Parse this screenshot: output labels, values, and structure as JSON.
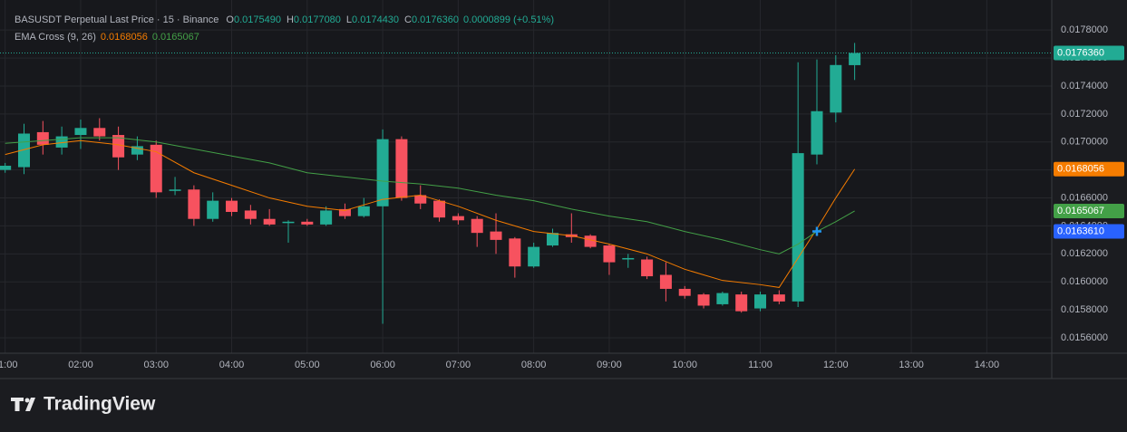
{
  "chart_data": {
    "type": "candlestick",
    "title": "BASUSDT Perpetual Last Price · 15 · Binance",
    "ohlc_legend": [
      {
        "key": "O",
        "text": "0.0175490"
      },
      {
        "key": "H",
        "text": "0.0177080"
      },
      {
        "key": "L",
        "text": "0.0174430"
      },
      {
        "key": "C",
        "text": "0.0176360"
      }
    ],
    "change": "0.0000899 (+0.51%)",
    "indicator": "EMA Cross (9, 26)",
    "x": [
      1,
      1.25,
      1.5,
      1.75,
      2,
      2.25,
      2.5,
      2.75,
      3,
      3.25,
      3.5,
      3.75,
      4,
      4.25,
      4.5,
      4.75,
      5,
      5.25,
      5.5,
      5.75,
      6,
      6.25,
      6.5,
      6.75,
      7,
      7.25,
      7.5,
      7.75,
      8,
      8.25,
      8.5,
      8.75,
      9,
      9.25,
      9.5,
      9.75,
      10,
      10.25,
      10.5,
      10.75,
      11,
      11.25,
      11.5,
      11.75,
      12,
      12.25
    ],
    "open": [
      0.0168,
      0.01682,
      0.01707,
      0.01696,
      0.01705,
      0.0171,
      0.01705,
      0.01691,
      0.01698,
      0.01665,
      0.01666,
      0.01645,
      0.01658,
      0.01651,
      0.01645,
      0.01642,
      0.01643,
      0.01641,
      0.01652,
      0.01647,
      0.01654,
      0.01702,
      0.01662,
      0.01658,
      0.01647,
      0.01645,
      0.01636,
      0.01631,
      0.01611,
      0.01626,
      0.01634,
      0.01633,
      0.01626,
      0.01616,
      0.01616,
      0.01605,
      0.01595,
      0.01591,
      0.01584,
      0.01591,
      0.01581,
      0.01591,
      0.01586,
      0.01691,
      0.01721,
      0.017549
    ],
    "high": [
      0.01685,
      0.01713,
      0.01715,
      0.01711,
      0.01716,
      0.01717,
      0.01711,
      0.01704,
      0.01701,
      0.01675,
      0.01669,
      0.01664,
      0.0166,
      0.01655,
      0.01652,
      0.01644,
      0.01645,
      0.01654,
      0.01656,
      0.0166,
      0.01709,
      0.01704,
      0.01669,
      0.01659,
      0.01649,
      0.01647,
      0.01649,
      0.01632,
      0.01628,
      0.01638,
      0.01649,
      0.01634,
      0.01627,
      0.0162,
      0.01618,
      0.01614,
      0.01597,
      0.01592,
      0.01593,
      0.01593,
      0.01593,
      0.01594,
      0.01757,
      0.01759,
      0.01762,
      0.017708
    ],
    "low": [
      0.01678,
      0.01677,
      0.01691,
      0.01691,
      0.01695,
      0.01701,
      0.0168,
      0.01687,
      0.0166,
      0.01662,
      0.0164,
      0.01643,
      0.01647,
      0.01641,
      0.0164,
      0.01628,
      0.0164,
      0.0164,
      0.01645,
      0.01646,
      0.0157,
      0.01658,
      0.01652,
      0.01643,
      0.01641,
      0.01625,
      0.0162,
      0.01603,
      0.0161,
      0.01625,
      0.01628,
      0.01624,
      0.01605,
      0.0161,
      0.01602,
      0.01586,
      0.01588,
      0.01581,
      0.01583,
      0.01578,
      0.01579,
      0.01584,
      0.01582,
      0.01684,
      0.01714,
      0.017443
    ],
    "close": [
      0.01683,
      0.01706,
      0.01698,
      0.01704,
      0.0171,
      0.01704,
      0.01689,
      0.01697,
      0.01664,
      0.01666,
      0.01645,
      0.01658,
      0.0165,
      0.01645,
      0.01641,
      0.01643,
      0.01641,
      0.01651,
      0.01647,
      0.01654,
      0.01702,
      0.0166,
      0.01656,
      0.01646,
      0.01644,
      0.01635,
      0.0163,
      0.01611,
      0.01625,
      0.01635,
      0.01632,
      0.01625,
      0.01614,
      0.01617,
      0.01604,
      0.01595,
      0.0159,
      0.01583,
      0.01592,
      0.01579,
      0.01591,
      0.01586,
      0.01692,
      0.01722,
      0.01755,
      0.017636
    ],
    "up_color": "#22ab94",
    "down_color": "#f7525f",
    "series": [
      {
        "color": "#f57c00",
        "x": [
          1,
          1.5,
          2,
          2.5,
          3,
          3.5,
          4,
          4.5,
          5,
          5.5,
          6,
          6.5,
          7,
          7.5,
          8,
          8.5,
          9,
          9.5,
          10,
          10.5,
          11,
          11.25,
          11.5,
          11.75,
          12,
          12.25
        ],
        "values": [
          0.01691,
          0.01698,
          0.01701,
          0.01698,
          0.01693,
          0.01678,
          0.01669,
          0.0166,
          0.01654,
          0.01651,
          0.01659,
          0.01662,
          0.01654,
          0.01644,
          0.01636,
          0.01633,
          0.01627,
          0.0162,
          0.01609,
          0.01601,
          0.01598,
          0.01596,
          0.01617,
          0.01638,
          0.0166,
          0.0168056
        ]
      },
      {
        "color": "#43a047",
        "x": [
          1,
          1.5,
          2,
          2.5,
          3,
          3.5,
          4,
          4.5,
          5,
          5.5,
          6,
          6.5,
          7,
          7.5,
          8,
          8.5,
          9,
          9.5,
          10,
          10.5,
          11,
          11.25,
          11.5,
          11.75,
          12,
          12.25
        ],
        "values": [
          0.01699,
          0.01701,
          0.01703,
          0.01703,
          0.017,
          0.01695,
          0.0169,
          0.01685,
          0.01678,
          0.01675,
          0.01672,
          0.0167,
          0.01667,
          0.01662,
          0.01658,
          0.01652,
          0.01647,
          0.01643,
          0.01636,
          0.0163,
          0.01623,
          0.0162,
          0.01627,
          0.01636,
          0.01643,
          0.0165067
        ]
      }
    ],
    "xlim": [
      1.052,
      14.86
    ],
    "xticks": [
      {
        "value": 1,
        "label": "01:00"
      },
      {
        "value": 2,
        "label": "02:00"
      },
      {
        "value": 3,
        "label": "03:00"
      },
      {
        "value": 4,
        "label": "04:00"
      },
      {
        "value": 5,
        "label": "05:00"
      },
      {
        "value": 6,
        "label": "06:00"
      },
      {
        "value": 7,
        "label": "07:00"
      },
      {
        "value": 8,
        "label": "08:00"
      },
      {
        "value": 9,
        "label": "09:00"
      },
      {
        "value": 10,
        "label": "10:00"
      },
      {
        "value": 11,
        "label": "11:00"
      },
      {
        "value": 12,
        "label": "12:00"
      },
      {
        "value": 13,
        "label": "13:00"
      },
      {
        "value": 14,
        "label": "14:00"
      }
    ],
    "ylim": [
      0.01549,
      0.01795
    ],
    "yticks": [
      {
        "value": 0.0156,
        "label": "0.0156000"
      },
      {
        "value": 0.0158,
        "label": "0.0158000"
      },
      {
        "value": 0.016,
        "label": "0.0160000"
      },
      {
        "value": 0.0162,
        "label": "0.0162000"
      },
      {
        "value": 0.0164,
        "label": "0.0164000"
      },
      {
        "value": 0.0166,
        "label": "0.0166000"
      },
      {
        "value": 0.0168,
        "label": "0.0168000"
      },
      {
        "value": 0.017,
        "label": "0.0170000"
      },
      {
        "value": 0.0172,
        "label": "0.0172000"
      },
      {
        "value": 0.0174,
        "label": "0.0174000"
      },
      {
        "value": 0.0176,
        "label": "0.0176000"
      },
      {
        "value": 0.0178,
        "label": "0.0178000"
      }
    ],
    "grid": true,
    "price_labels": [
      {
        "value": 0.017636,
        "label": "0.0176360",
        "color": "#22ab94"
      },
      {
        "value": 0.0168056,
        "label": "0.0168056",
        "color": "#f57c00"
      },
      {
        "value": 0.0165067,
        "label": "0.0165067",
        "color": "#43a047"
      },
      {
        "value": 0.016361,
        "label": "0.0163610",
        "color": "#2962ff"
      }
    ],
    "crosshair": {
      "x": 11.75,
      "y": 0.016361,
      "color": "#2196f3"
    },
    "brand": "TradingView"
  }
}
